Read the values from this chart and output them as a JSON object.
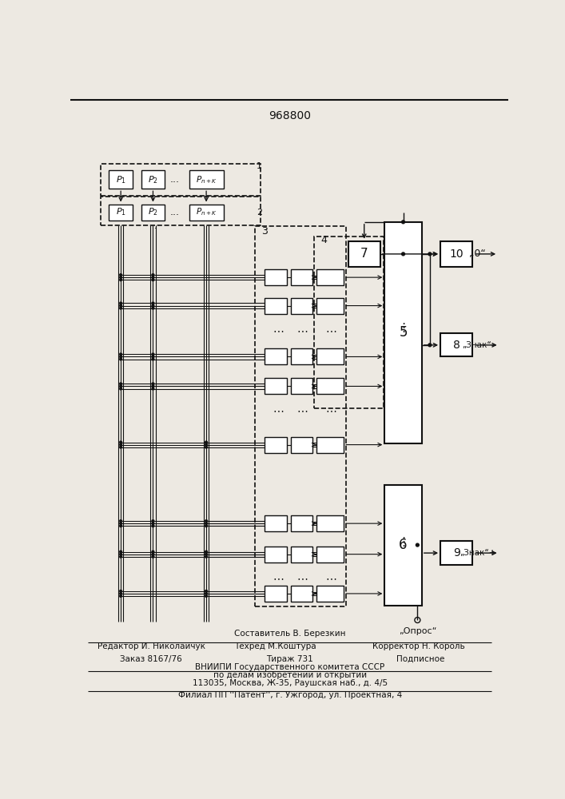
{
  "title": "968800",
  "bg_color": "#ede9e2",
  "text_color": "#111111",
  "footer_comp": "Составитель В. Березкин",
  "footer_ed_left": "Редактор И. Николайчук",
  "footer_ed_mid": "Техред М.Коштура",
  "footer_ed_right": "Корректор Н. Король",
  "footer_ord_left": "Заказ 8167/76",
  "footer_ord_mid": "Тираж 731",
  "footer_ord_right": "Подписное",
  "footer_org1": "ВНИИПИ Государственного комитета СССР",
  "footer_org2": "по делам изобретений и открытий",
  "footer_org3": "113035, Москва, Ж-35, Раушская наб., д. 4/5",
  "footer_branch": "Филиал ПП ''Патент'', г. Ужгород, ул. Проектная, 4"
}
